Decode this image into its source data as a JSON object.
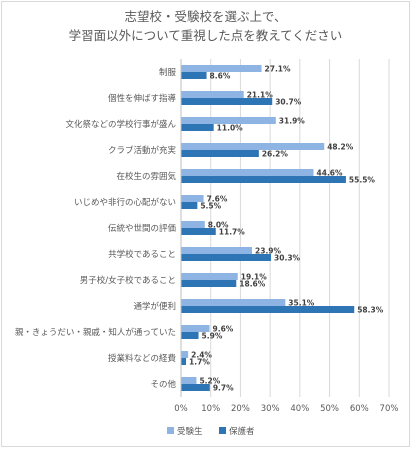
{
  "chart_data": {
    "type": "bar",
    "orientation": "horizontal",
    "title_lines": [
      "志望校・受験校を選ぶ上で、",
      "学習面以外について重視した点を教えてください"
    ],
    "categories": [
      "制服",
      "個性を伸ばす指導",
      "文化祭などの学校行事が盛ん",
      "クラブ活動が充実",
      "在校生の雰囲気",
      "いじめや非行の心配がない",
      "伝統や世間の評価",
      "共学校であること",
      "男子校/女子校であること",
      "通学が便利",
      "親・きょうだい・親戚・知人が通っていた",
      "授業料などの経費",
      "その他"
    ],
    "series": [
      {
        "name": "受験生",
        "color": "#8eb4e3",
        "values": [
          27.1,
          21.1,
          31.9,
          48.2,
          44.6,
          7.6,
          8.0,
          23.9,
          19.1,
          35.1,
          9.6,
          2.4,
          5.2
        ]
      },
      {
        "name": "保護者",
        "color": "#2e75b6",
        "values": [
          8.6,
          30.7,
          11.0,
          26.2,
          55.5,
          5.5,
          11.7,
          30.3,
          18.6,
          58.3,
          5.9,
          1.7,
          9.7
        ]
      }
    ],
    "xlim": [
      0,
      70
    ],
    "xticks": [
      "0%",
      "10%",
      "20%",
      "30%",
      "40%",
      "50%",
      "60%",
      "70%"
    ],
    "value_suffix": "%",
    "grid": true,
    "legend_position": "bottom"
  }
}
